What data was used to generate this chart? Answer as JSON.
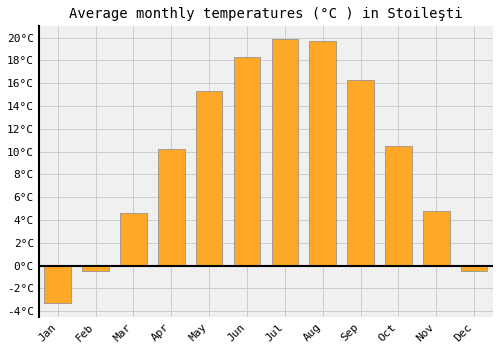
{
  "title": "Average monthly temperatures (°C ) in Stoileşti",
  "months": [
    "Jan",
    "Feb",
    "Mar",
    "Apr",
    "May",
    "Jun",
    "Jul",
    "Aug",
    "Sep",
    "Oct",
    "Nov",
    "Dec"
  ],
  "temperatures": [
    -3.3,
    -0.5,
    4.6,
    10.2,
    15.3,
    18.3,
    19.9,
    19.7,
    16.3,
    10.5,
    4.8,
    -0.5
  ],
  "bar_color": "#FFA726",
  "bar_edge_color": "#888888",
  "ylim": [
    -4.5,
    21
  ],
  "yticks": [
    -4,
    -2,
    0,
    2,
    4,
    6,
    8,
    10,
    12,
    14,
    16,
    18,
    20
  ],
  "ytick_labels": [
    "-4°C",
    "-2°C",
    "0°C",
    "2°C",
    "4°C",
    "6°C",
    "8°C",
    "10°C",
    "12°C",
    "14°C",
    "16°C",
    "18°C",
    "20°C"
  ],
  "background_color": "#ffffff",
  "plot_bg_color": "#f0f0f0",
  "grid_color": "#cccccc",
  "zero_line_color": "#000000",
  "title_fontsize": 10,
  "tick_fontsize": 8
}
